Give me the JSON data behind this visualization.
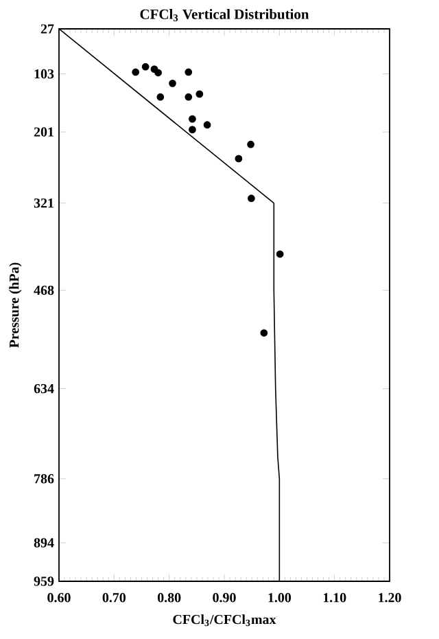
{
  "chart_data": {
    "type": "scatter",
    "title": "CFCl$_{3}$ Vertical Distribution",
    "xlabel": "CFCl$_{3}$/CFCl$_{3}$max",
    "ylabel": "Pressure (hPa)",
    "xlim": [
      0.6,
      1.2
    ],
    "ylim": [
      959,
      27
    ],
    "xticks": [
      {
        "value": 0.6,
        "label": "0.60"
      },
      {
        "value": 0.7,
        "label": "0.70"
      },
      {
        "value": 0.8,
        "label": "0.80"
      },
      {
        "value": 0.9,
        "label": "0.90"
      },
      {
        "value": 1.0,
        "label": "1.00"
      },
      {
        "value": 1.1,
        "label": "1.10"
      },
      {
        "value": 1.2,
        "label": "1.20"
      }
    ],
    "yticks": [
      27,
      103,
      201,
      321,
      468,
      634,
      786,
      894,
      959
    ],
    "series": [
      {
        "color": "#000000",
        "marker": "circle",
        "x": [
          0.739,
          0.757,
          0.773,
          0.78,
          0.835,
          0.806,
          0.784,
          0.835,
          0.855,
          0.842,
          0.842,
          0.869,
          0.948,
          0.926,
          0.949,
          1.001,
          0.972
        ],
        "values": [
          100,
          91,
          95,
          101,
          100,
          119,
          142,
          142,
          137,
          179,
          197,
          189,
          222,
          246,
          313,
          407,
          540
        ]
      },
      {
        "type": "line",
        "color": "#000000",
        "marker": "none",
        "line_style": "solid",
        "x": [
          0.6,
          0.99,
          0.99,
          0.993,
          0.997,
          1.0,
          1.0
        ],
        "values": [
          27,
          321,
          468,
          634,
          750,
          786,
          959
        ]
      }
    ]
  }
}
